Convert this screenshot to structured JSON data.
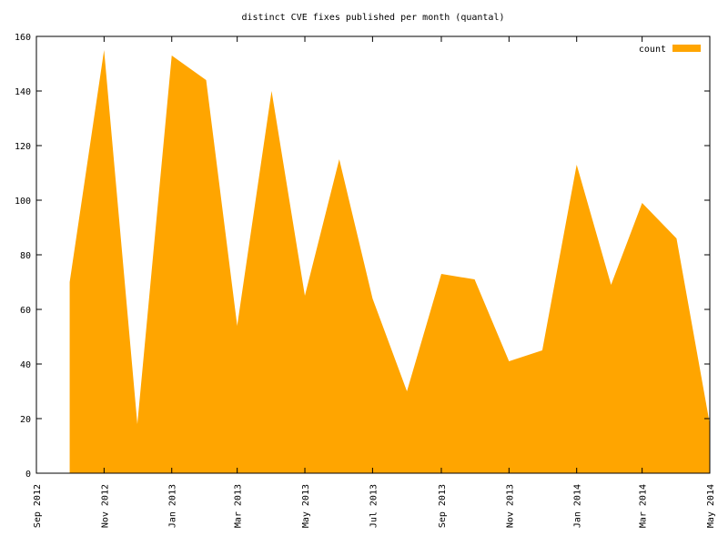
{
  "chart_data": {
    "type": "area",
    "title": "distinct CVE fixes published per month (quantal)",
    "x": [
      "2012-10",
      "2012-11",
      "2012-12",
      "2013-01",
      "2013-02",
      "2013-03",
      "2013-04",
      "2013-05",
      "2013-06",
      "2013-07",
      "2013-08",
      "2013-09",
      "2013-10",
      "2013-11",
      "2013-12",
      "2014-01",
      "2014-02",
      "2014-03",
      "2014-04",
      "2014-05"
    ],
    "series": [
      {
        "name": "count",
        "color": "#ffa500",
        "values": [
          70,
          155,
          18,
          153,
          144,
          54,
          140,
          65,
          115,
          64,
          30,
          73,
          71,
          41,
          45,
          113,
          69,
          99,
          86,
          18
        ]
      }
    ],
    "xlim": [
      "2012-09",
      "2014-05"
    ],
    "xticks": [
      {
        "value": "2012-09",
        "label": "Sep 2012"
      },
      {
        "value": "2012-11",
        "label": "Nov 2012"
      },
      {
        "value": "2013-01",
        "label": "Jan 2013"
      },
      {
        "value": "2013-03",
        "label": "Mar 2013"
      },
      {
        "value": "2013-05",
        "label": "May 2013"
      },
      {
        "value": "2013-07",
        "label": "Jul 2013"
      },
      {
        "value": "2013-09",
        "label": "Sep 2013"
      },
      {
        "value": "2013-11",
        "label": "Nov 2013"
      },
      {
        "value": "2014-01",
        "label": "Jan 2014"
      },
      {
        "value": "2014-03",
        "label": "Mar 2014"
      },
      {
        "value": "2014-05",
        "label": "May 2014"
      }
    ],
    "ylim": [
      0,
      160
    ],
    "yticks": [
      0,
      20,
      40,
      60,
      80,
      100,
      120,
      140,
      160
    ],
    "legend": "top-right"
  }
}
